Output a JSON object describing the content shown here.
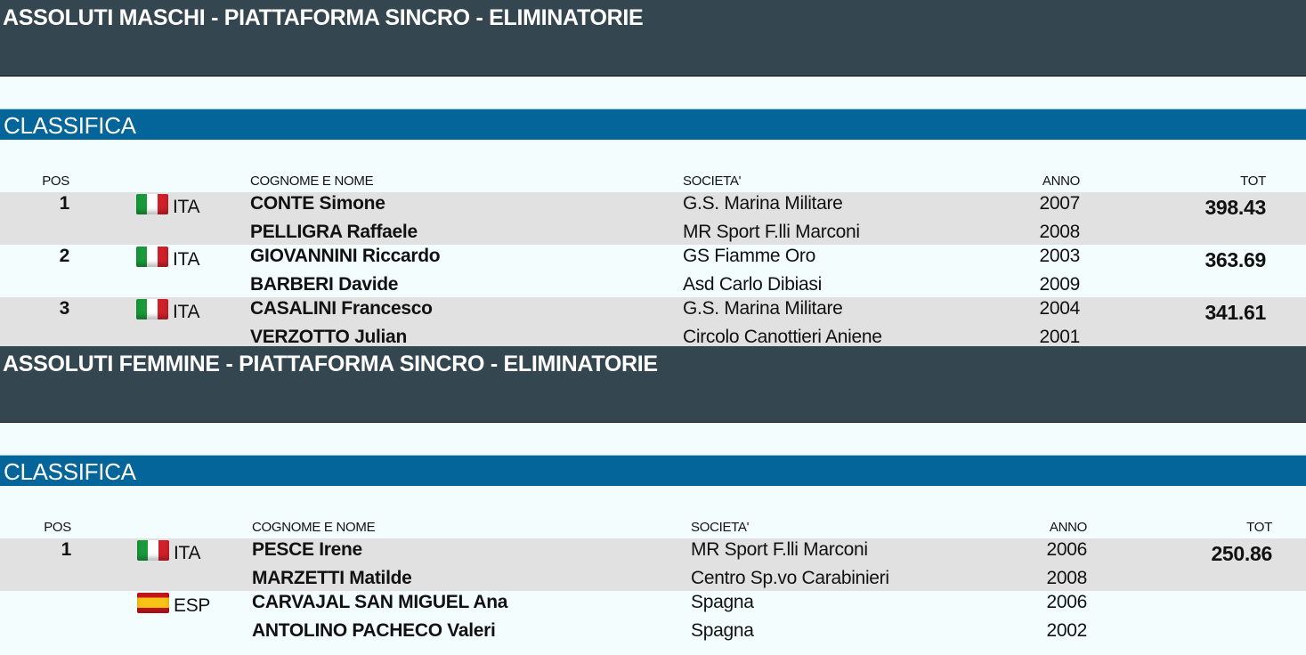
{
  "sections": [
    {
      "event_title": "ASSOLUTI MASCHI - PIATTAFORMA SINCRO - ELIMINATORIE",
      "subtitle": "CLASSIFICA",
      "columns": {
        "pos": "POS",
        "name": "COGNOME E NOME",
        "club": "SOCIETA'",
        "year": "ANNO",
        "tot": "TOT"
      },
      "entries": [
        {
          "pos": "1",
          "nation": "ITA",
          "flag": "flag-italy-icon",
          "tot": "398.43",
          "athletes": [
            {
              "name": "CONTE Simone",
              "club": "G.S. Marina Militare",
              "year": "2007"
            },
            {
              "name": "PELLIGRA Raffaele",
              "club": "MR Sport F.lli Marconi",
              "year": "2008"
            }
          ]
        },
        {
          "pos": "2",
          "nation": "ITA",
          "flag": "flag-italy-icon",
          "tot": "363.69",
          "athletes": [
            {
              "name": "GIOVANNINI Riccardo",
              "club": "GS Fiamme Oro",
              "year": "2003"
            },
            {
              "name": "BARBERI Davide",
              "club": "Asd Carlo Dibiasi",
              "year": "2009"
            }
          ]
        },
        {
          "pos": "3",
          "nation": "ITA",
          "flag": "flag-italy-icon",
          "tot": "341.61",
          "athletes": [
            {
              "name": "CASALINI Francesco",
              "club": "G.S. Marina Militare",
              "year": "2004"
            },
            {
              "name": "VERZOTTO Julian",
              "club": "Circolo Canottieri Aniene",
              "year": "2001"
            }
          ]
        }
      ]
    },
    {
      "event_title": "ASSOLUTI FEMMINE - PIATTAFORMA SINCRO - ELIMINATORIE",
      "subtitle": "CLASSIFICA",
      "columns": {
        "pos": "POS",
        "name": "COGNOME E NOME",
        "club": "SOCIETA'",
        "year": "ANNO",
        "tot": "TOT"
      },
      "entries": [
        {
          "pos": "1",
          "nation": "ITA",
          "flag": "flag-italy-icon",
          "tot": "250.86",
          "athletes": [
            {
              "name": "PESCE Irene",
              "club": "MR Sport F.lli Marconi",
              "year": "2006"
            },
            {
              "name": "MARZETTI Matilde",
              "club": "Centro Sp.vo Carabinieri",
              "year": "2008"
            }
          ]
        },
        {
          "pos": "",
          "nation": "ESP",
          "flag": "flag-spain-icon",
          "tot": "",
          "athletes": [
            {
              "name": "CARVAJAL SAN MIGUEL Ana",
              "club": "Spagna",
              "year": "2006"
            },
            {
              "name": "ANTOLINO PACHECO Valeri",
              "club": "Spagna",
              "year": "2002"
            }
          ]
        }
      ]
    }
  ]
}
